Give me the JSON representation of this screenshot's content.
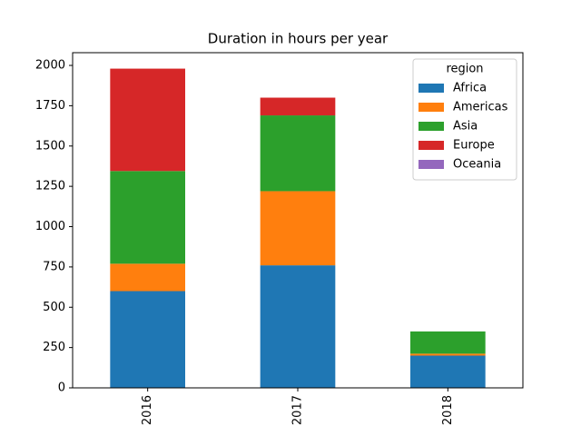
{
  "chart_data": {
    "type": "stacked-bar",
    "title": "Duration in hours per year",
    "categories": [
      "2016",
      "2017",
      "2018"
    ],
    "series": [
      {
        "name": "Africa",
        "color": "#1f77b4",
        "values": [
          600,
          760,
          200
        ]
      },
      {
        "name": "Americas",
        "color": "#ff7f0e",
        "values": [
          170,
          460,
          12
        ]
      },
      {
        "name": "Asia",
        "color": "#2ca02c",
        "values": [
          575,
          470,
          138
        ]
      },
      {
        "name": "Europe",
        "color": "#d62728",
        "values": [
          635,
          110,
          0
        ]
      },
      {
        "name": "Oceania",
        "color": "#9467bd",
        "values": [
          0,
          0,
          0
        ]
      }
    ],
    "legend_title": "region",
    "legend": "upper right",
    "ylim": [
      0,
      2079
    ],
    "yticks": [
      0,
      250,
      500,
      750,
      1000,
      1250,
      1500,
      1750,
      2000
    ]
  }
}
